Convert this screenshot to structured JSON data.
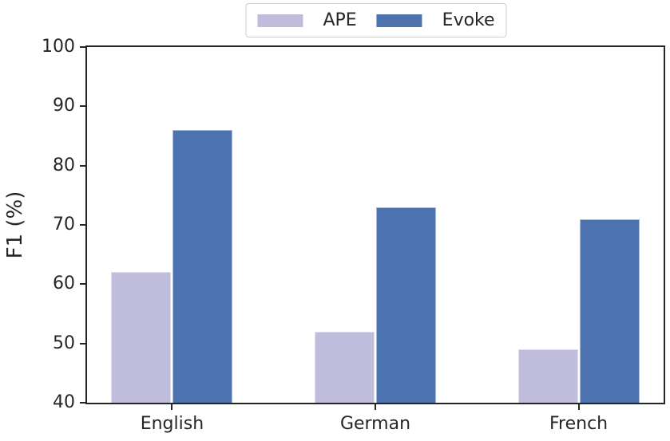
{
  "figure": {
    "background": "#ffffff",
    "text_color": "#262626",
    "spine_color": "#252525"
  },
  "chart_data": {
    "type": "bar",
    "title": "",
    "xlabel": "",
    "ylabel": "F1 (%)",
    "categories": [
      "English",
      "German",
      "French"
    ],
    "series": [
      {
        "name": "APE",
        "color": "#bfbcdc",
        "values": [
          62,
          52,
          49
        ]
      },
      {
        "name": "Evoke",
        "color": "#4c72b0",
        "values": [
          86,
          73,
          71
        ]
      }
    ],
    "ylim": [
      40,
      100
    ],
    "y_ticks": [
      40,
      50,
      60,
      70,
      80,
      90,
      100
    ],
    "grid": false,
    "legend_position": "top-center-outside"
  }
}
